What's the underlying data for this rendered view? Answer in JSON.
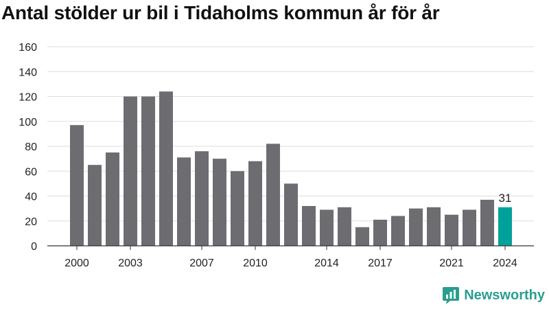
{
  "title": "Antal stölder ur bil i Tidaholms kommun år för år",
  "brand": {
    "name": "Newsworthy",
    "icon": "bar-chart-speech-bubble-icon",
    "color": "#2a9d8f"
  },
  "colors": {
    "bar": "#6d6c71",
    "highlight": "#00a19a",
    "grid": "#dddddd",
    "axis": "#333333"
  },
  "chart_data": {
    "type": "bar",
    "title": "Antal stölder ur bil i Tidaholms kommun år för år",
    "xlabel": "",
    "ylabel": "",
    "categories": [
      2000,
      2001,
      2002,
      2003,
      2004,
      2005,
      2006,
      2007,
      2008,
      2009,
      2010,
      2011,
      2012,
      2013,
      2014,
      2015,
      2016,
      2017,
      2018,
      2019,
      2020,
      2021,
      2022,
      2023,
      2024
    ],
    "values": [
      97,
      65,
      75,
      120,
      120,
      124,
      71,
      76,
      70,
      60,
      68,
      82,
      50,
      32,
      29,
      31,
      15,
      21,
      24,
      30,
      31,
      25,
      29,
      37,
      31
    ],
    "x_tick_labels": [
      "2000",
      "2003",
      "2007",
      "2010",
      "2014",
      "2017",
      "2021",
      "2024"
    ],
    "y_ticks": [
      0,
      20,
      40,
      60,
      80,
      100,
      120,
      140,
      160
    ],
    "ylim": [
      0,
      160
    ],
    "grid": true,
    "highlight_category": 2024,
    "data_labels": [
      {
        "category": 2024,
        "text": "31"
      }
    ]
  }
}
